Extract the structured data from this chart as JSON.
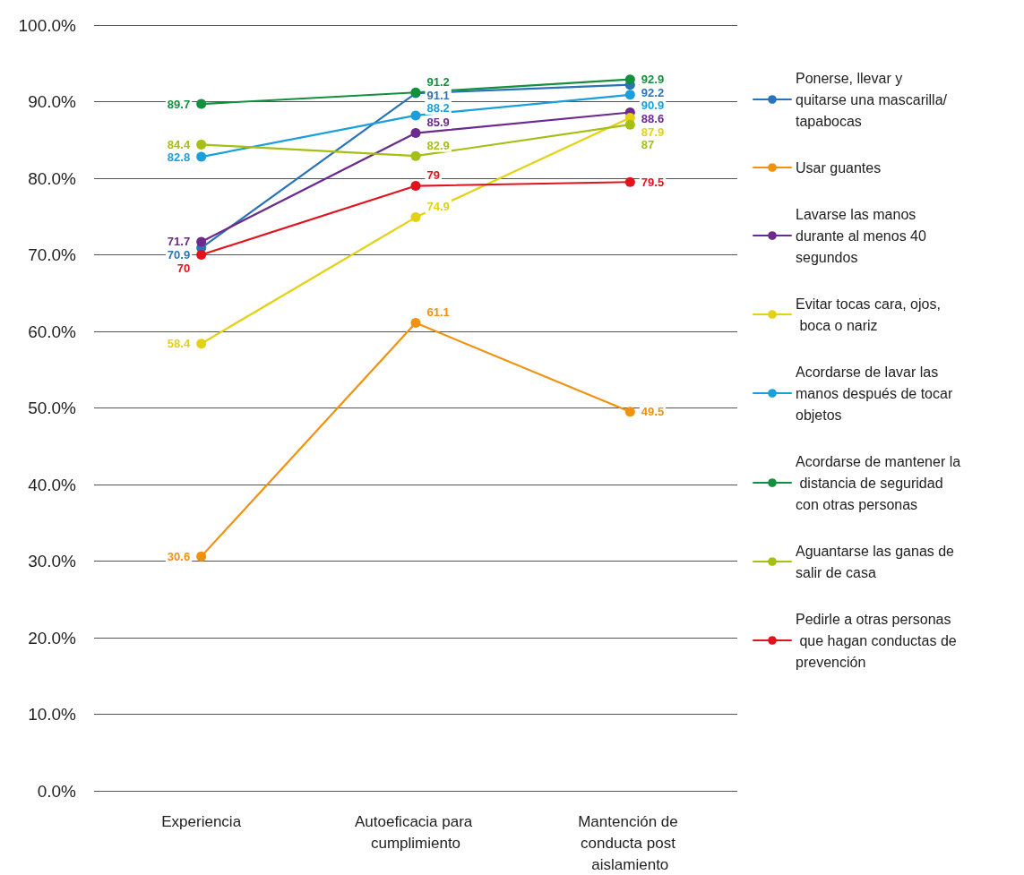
{
  "chart_data": {
    "type": "line",
    "categories": [
      "Experiencia",
      "Autoeficacia para cumplimiento",
      "Mantención de conducta post aislamiento"
    ],
    "series": [
      {
        "name": "Ponerse, llevar y quitarse una mascarilla/tapabocas",
        "color": "#2a73b8",
        "values": [
          70.9,
          91.1,
          92.2
        ]
      },
      {
        "name": "Usar guantes",
        "color": "#f0920f",
        "values": [
          30.6,
          61.1,
          49.5
        ]
      },
      {
        "name": "Lavarse las manos durante al menos 40 segundos",
        "color": "#6b2a8c",
        "values": [
          71.7,
          85.9,
          88.6
        ]
      },
      {
        "name": "Evitar tocas cara, ojos, boca o nariz",
        "color": "#e3d214",
        "values": [
          58.4,
          74.9,
          87.9
        ]
      },
      {
        "name": "Acordarse de lavar las manos después de tocar objetos",
        "color": "#1a9fdc",
        "values": [
          82.8,
          88.2,
          90.9
        ]
      },
      {
        "name": "Acordarse de mantener la distancia de seguridad con otras personas",
        "color": "#12903e",
        "values": [
          89.7,
          91.2,
          92.9
        ]
      },
      {
        "name": "Aguantarse las ganas de salir de casa",
        "color": "#a6bf14",
        "values": [
          84.4,
          82.9,
          87
        ]
      },
      {
        "name": "Pedirle a otras personas que hagan conductas de prevención",
        "color": "#e2131d",
        "values": [
          70,
          79,
          79.5
        ]
      }
    ],
    "ylim": [
      0,
      100
    ],
    "yticks": [
      {
        "value": 0,
        "label": "0.0%"
      },
      {
        "value": 10,
        "label": "10.0%"
      },
      {
        "value": 20,
        "label": "20.0%"
      },
      {
        "value": 30,
        "label": "30.0%"
      },
      {
        "value": 40,
        "label": "40.0%"
      },
      {
        "value": 50,
        "label": "50.0%"
      },
      {
        "value": 60,
        "label": "60.0%"
      },
      {
        "value": 70,
        "label": "70.0%"
      },
      {
        "value": 80,
        "label": "80.0%"
      },
      {
        "value": 90,
        "label": "90.0%"
      },
      {
        "value": 100,
        "label": "100.0%"
      }
    ],
    "grid": "y",
    "legend": "right",
    "marker": "circle",
    "line_style": "solid",
    "data_labels": true
  }
}
